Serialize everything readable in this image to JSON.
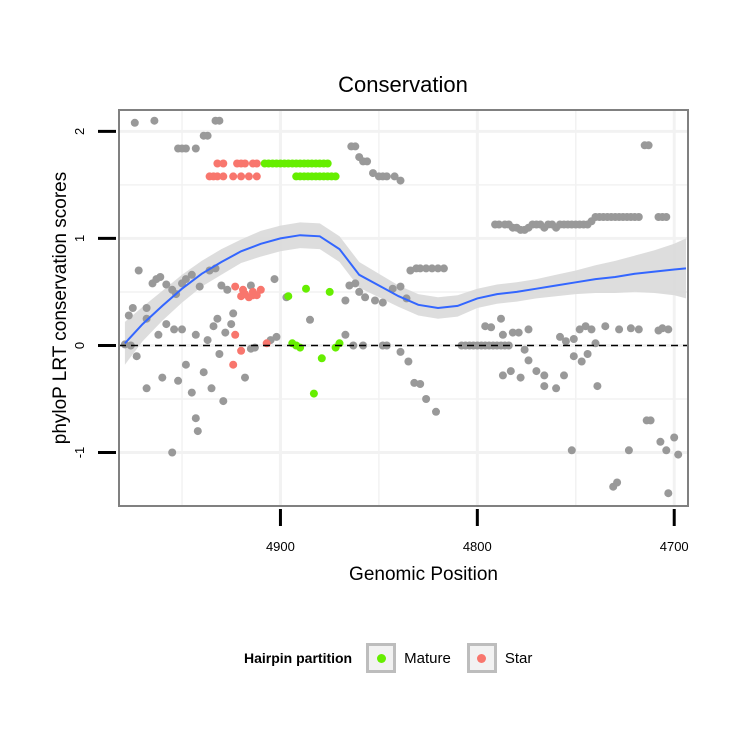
{
  "chart_data": {
    "type": "scatter",
    "title": "Conservation",
    "xlabel": "Genomic Position",
    "ylabel": "phyloP LRT conservation scores",
    "xlim": [
      4982,
      4693
    ],
    "ylim": [
      -1.5,
      2.2
    ],
    "x_reversed": true,
    "xticks": [
      4900,
      4800,
      4700
    ],
    "yticks": [
      -1,
      0,
      1,
      2
    ],
    "reference_line": {
      "y": 0,
      "style": "dashed"
    },
    "legend": {
      "title": "Hairpin partition",
      "position": "bottom",
      "entries": [
        {
          "label": "Mature",
          "color": "#66ee00"
        },
        {
          "label": "Star",
          "color": "#f8766d"
        }
      ]
    },
    "colors": {
      "other": "#999999",
      "mature": "#66ee00",
      "star": "#f8766d",
      "smooth": "#3366ff",
      "ribbon": "#d9d9d9",
      "panel_bg": "#ffffff",
      "grid": "#f2f2f2"
    },
    "smooth_curve": {
      "x": [
        4979,
        4970,
        4960,
        4950,
        4940,
        4930,
        4920,
        4910,
        4900,
        4890,
        4880,
        4870,
        4860,
        4850,
        4840,
        4830,
        4820,
        4810,
        4800,
        4790,
        4780,
        4770,
        4760,
        4750,
        4740,
        4730,
        4720,
        4710,
        4700,
        4694
      ],
      "y": [
        0.02,
        0.2,
        0.37,
        0.53,
        0.67,
        0.78,
        0.88,
        0.95,
        1.0,
        1.03,
        1.02,
        0.9,
        0.66,
        0.56,
        0.46,
        0.38,
        0.35,
        0.37,
        0.44,
        0.48,
        0.5,
        0.53,
        0.56,
        0.59,
        0.62,
        0.64,
        0.67,
        0.69,
        0.71,
        0.72
      ],
      "upper": [
        0.22,
        0.36,
        0.51,
        0.66,
        0.79,
        0.9,
        0.99,
        1.07,
        1.12,
        1.15,
        1.14,
        1.02,
        0.78,
        0.67,
        0.56,
        0.48,
        0.45,
        0.47,
        0.53,
        0.57,
        0.59,
        0.62,
        0.66,
        0.7,
        0.75,
        0.79,
        0.84,
        0.89,
        0.95,
        1.0
      ],
      "lower": [
        -0.18,
        0.04,
        0.23,
        0.4,
        0.55,
        0.66,
        0.77,
        0.83,
        0.88,
        0.91,
        0.9,
        0.78,
        0.54,
        0.45,
        0.36,
        0.28,
        0.25,
        0.27,
        0.35,
        0.39,
        0.41,
        0.44,
        0.46,
        0.48,
        0.49,
        0.49,
        0.5,
        0.49,
        0.47,
        0.44
      ]
    },
    "series": [
      {
        "name": "Mature",
        "points": [
          [
            4908,
            1.7
          ],
          [
            4906,
            1.7
          ],
          [
            4904,
            1.7
          ],
          [
            4902,
            1.7
          ],
          [
            4900,
            1.7
          ],
          [
            4898,
            1.7
          ],
          [
            4896,
            1.7
          ],
          [
            4894,
            1.7
          ],
          [
            4892,
            1.7
          ],
          [
            4890,
            1.7
          ],
          [
            4888,
            1.7
          ],
          [
            4886,
            1.7
          ],
          [
            4884,
            1.7
          ],
          [
            4882,
            1.7
          ],
          [
            4880,
            1.7
          ],
          [
            4878,
            1.7
          ],
          [
            4876,
            1.7
          ],
          [
            4892,
            1.58
          ],
          [
            4890,
            1.58
          ],
          [
            4888,
            1.58
          ],
          [
            4886,
            1.58
          ],
          [
            4884,
            1.58
          ],
          [
            4882,
            1.58
          ],
          [
            4880,
            1.58
          ],
          [
            4878,
            1.58
          ],
          [
            4876,
            1.58
          ],
          [
            4874,
            1.58
          ],
          [
            4872,
            1.58
          ],
          [
            4896,
            0.46
          ],
          [
            4887,
            0.53
          ],
          [
            4875,
            0.5
          ],
          [
            4894,
            0.02
          ],
          [
            4892,
            0.0
          ],
          [
            4890,
            -0.02
          ],
          [
            4879,
            -0.12
          ],
          [
            4872,
            -0.02
          ],
          [
            4870,
            0.02
          ],
          [
            4883,
            -0.45
          ]
        ]
      },
      {
        "name": "Star",
        "points": [
          [
            4932,
            1.7
          ],
          [
            4929,
            1.7
          ],
          [
            4922,
            1.7
          ],
          [
            4920,
            1.7
          ],
          [
            4918,
            1.7
          ],
          [
            4914,
            1.7
          ],
          [
            4912,
            1.7
          ],
          [
            4936,
            1.58
          ],
          [
            4934,
            1.58
          ],
          [
            4932,
            1.58
          ],
          [
            4929,
            1.58
          ],
          [
            4924,
            1.58
          ],
          [
            4920,
            1.58
          ],
          [
            4916,
            1.58
          ],
          [
            4912,
            1.58
          ],
          [
            4923,
            0.55
          ],
          [
            4919,
            0.52
          ],
          [
            4914,
            0.5
          ],
          [
            4912,
            0.47
          ],
          [
            4916,
            0.45
          ],
          [
            4910,
            0.52
          ],
          [
            4920,
            0.46
          ],
          [
            4918,
            0.48
          ],
          [
            4914,
            0.47
          ],
          [
            4923,
            0.1
          ],
          [
            4920,
            -0.05
          ],
          [
            4924,
            -0.18
          ],
          [
            4907,
            0.02
          ]
        ]
      },
      {
        "name": "Other",
        "points": [
          [
            4974,
            2.08
          ],
          [
            4964,
            2.1
          ],
          [
            4952,
            1.84
          ],
          [
            4950,
            1.84
          ],
          [
            4948,
            1.84
          ],
          [
            4943,
            1.84
          ],
          [
            4939,
            1.96
          ],
          [
            4937,
            1.96
          ],
          [
            4933,
            2.1
          ],
          [
            4931,
            2.1
          ],
          [
            4864,
            1.86
          ],
          [
            4862,
            1.86
          ],
          [
            4860,
            1.76
          ],
          [
            4858,
            1.72
          ],
          [
            4856,
            1.72
          ],
          [
            4853,
            1.61
          ],
          [
            4850,
            1.58
          ],
          [
            4848,
            1.58
          ],
          [
            4846,
            1.58
          ],
          [
            4842,
            1.58
          ],
          [
            4839,
            1.54
          ],
          [
            4791,
            1.13
          ],
          [
            4789,
            1.13
          ],
          [
            4786,
            1.13
          ],
          [
            4784,
            1.13
          ],
          [
            4782,
            1.1
          ],
          [
            4780,
            1.1
          ],
          [
            4778,
            1.08
          ],
          [
            4776,
            1.08
          ],
          [
            4774,
            1.1
          ],
          [
            4772,
            1.13
          ],
          [
            4770,
            1.13
          ],
          [
            4768,
            1.13
          ],
          [
            4766,
            1.1
          ],
          [
            4764,
            1.13
          ],
          [
            4762,
            1.13
          ],
          [
            4760,
            1.1
          ],
          [
            4758,
            1.13
          ],
          [
            4756,
            1.13
          ],
          [
            4754,
            1.13
          ],
          [
            4752,
            1.13
          ],
          [
            4750,
            1.13
          ],
          [
            4748,
            1.13
          ],
          [
            4746,
            1.13
          ],
          [
            4744,
            1.13
          ],
          [
            4742,
            1.16
          ],
          [
            4740,
            1.2
          ],
          [
            4738,
            1.2
          ],
          [
            4736,
            1.2
          ],
          [
            4734,
            1.2
          ],
          [
            4732,
            1.2
          ],
          [
            4730,
            1.2
          ],
          [
            4728,
            1.2
          ],
          [
            4726,
            1.2
          ],
          [
            4724,
            1.2
          ],
          [
            4722,
            1.2
          ],
          [
            4720,
            1.2
          ],
          [
            4718,
            1.2
          ],
          [
            4715,
            1.87
          ],
          [
            4713,
            1.87
          ],
          [
            4708,
            1.2
          ],
          [
            4706,
            1.2
          ],
          [
            4704,
            1.2
          ],
          [
            4977,
            0.28
          ],
          [
            4975,
            0.35
          ],
          [
            4972,
            0.7
          ],
          [
            4968,
            0.35
          ],
          [
            4965,
            0.58
          ],
          [
            4963,
            0.62
          ],
          [
            4961,
            0.64
          ],
          [
            4958,
            0.57
          ],
          [
            4955,
            0.52
          ],
          [
            4953,
            0.48
          ],
          [
            4950,
            0.58
          ],
          [
            4948,
            0.62
          ],
          [
            4945,
            0.66
          ],
          [
            4941,
            0.55
          ],
          [
            4936,
            0.7
          ],
          [
            4933,
            0.72
          ],
          [
            4930,
            0.56
          ],
          [
            4927,
            0.52
          ],
          [
            4924,
            0.3
          ],
          [
            4915,
            0.56
          ],
          [
            4903,
            0.62
          ],
          [
            4897,
            0.45
          ],
          [
            4885,
            0.24
          ],
          [
            4867,
            0.42
          ],
          [
            4865,
            0.56
          ],
          [
            4862,
            0.58
          ],
          [
            4860,
            0.5
          ],
          [
            4857,
            0.45
          ],
          [
            4852,
            0.42
          ],
          [
            4848,
            0.4
          ],
          [
            4843,
            0.53
          ],
          [
            4839,
            0.55
          ],
          [
            4836,
            0.44
          ],
          [
            4834,
            0.7
          ],
          [
            4831,
            0.72
          ],
          [
            4829,
            0.72
          ],
          [
            4826,
            0.72
          ],
          [
            4823,
            0.72
          ],
          [
            4820,
            0.72
          ],
          [
            4817,
            0.72
          ],
          [
            4979,
            0.01
          ],
          [
            4976,
            0.0
          ],
          [
            4973,
            -0.1
          ],
          [
            4968,
            0.25
          ],
          [
            4962,
            0.1
          ],
          [
            4958,
            0.2
          ],
          [
            4954,
            0.15
          ],
          [
            4950,
            0.15
          ],
          [
            4943,
            0.1
          ],
          [
            4937,
            0.05
          ],
          [
            4934,
            0.18
          ],
          [
            4932,
            0.25
          ],
          [
            4928,
            0.12
          ],
          [
            4925,
            0.2
          ],
          [
            4915,
            -0.03
          ],
          [
            4905,
            0.05
          ],
          [
            4902,
            0.08
          ],
          [
            4867,
            0.1
          ],
          [
            4863,
            0.0
          ],
          [
            4858,
            0.0
          ],
          [
            4848,
            0.0
          ],
          [
            4846,
            0.0
          ],
          [
            4839,
            -0.06
          ],
          [
            4835,
            -0.15
          ],
          [
            4832,
            -0.35
          ],
          [
            4829,
            -0.36
          ],
          [
            4821,
            -0.62
          ],
          [
            4826,
            -0.5
          ],
          [
            4808,
            0.0
          ],
          [
            4806,
            0.0
          ],
          [
            4804,
            0.0
          ],
          [
            4802,
            0.0
          ],
          [
            4800,
            0.0
          ],
          [
            4798,
            0.0
          ],
          [
            4796,
            0.0
          ],
          [
            4794,
            0.0
          ],
          [
            4792,
            0.0
          ],
          [
            4790,
            0.0
          ],
          [
            4788,
            0.0
          ],
          [
            4786,
            0.0
          ],
          [
            4784,
            0.0
          ],
          [
            4796,
            0.18
          ],
          [
            4793,
            0.17
          ],
          [
            4788,
            0.25
          ],
          [
            4787,
            0.1
          ],
          [
            4782,
            0.12
          ],
          [
            4779,
            0.12
          ],
          [
            4774,
            0.15
          ],
          [
            4758,
            0.08
          ],
          [
            4755,
            0.04
          ],
          [
            4751,
            0.06
          ],
          [
            4748,
            0.15
          ],
          [
            4745,
            0.18
          ],
          [
            4742,
            0.15
          ],
          [
            4740,
            0.02
          ],
          [
            4735,
            0.18
          ],
          [
            4728,
            0.15
          ],
          [
            4722,
            0.16
          ],
          [
            4718,
            0.15
          ],
          [
            4708,
            0.14
          ],
          [
            4706,
            0.16
          ],
          [
            4703,
            0.15
          ],
          [
            4776,
            -0.04
          ],
          [
            4774,
            -0.14
          ],
          [
            4770,
            -0.24
          ],
          [
            4766,
            -0.38
          ],
          [
            4778,
            -0.3
          ],
          [
            4787,
            -0.28
          ],
          [
            4766,
            -0.28
          ],
          [
            4760,
            -0.4
          ],
          [
            4756,
            -0.28
          ],
          [
            4747,
            -0.15
          ],
          [
            4744,
            -0.08
          ],
          [
            4739,
            -0.38
          ],
          [
            4731,
            -1.32
          ],
          [
            4729,
            -1.28
          ],
          [
            4723,
            -0.98
          ],
          [
            4714,
            -0.7
          ],
          [
            4712,
            -0.7
          ],
          [
            4707,
            -0.9
          ],
          [
            4704,
            -0.98
          ],
          [
            4700,
            -0.86
          ],
          [
            4698,
            -1.02
          ],
          [
            4968,
            -0.4
          ],
          [
            4960,
            -0.3
          ],
          [
            4955,
            -1.0
          ],
          [
            4952,
            -0.33
          ],
          [
            4948,
            -0.18
          ],
          [
            4945,
            -0.44
          ],
          [
            4943,
            -0.68
          ],
          [
            4942,
            -0.8
          ],
          [
            4939,
            -0.25
          ],
          [
            4935,
            -0.4
          ],
          [
            4931,
            -0.08
          ],
          [
            4929,
            -0.52
          ],
          [
            4918,
            -0.3
          ],
          [
            4913,
            -0.02
          ],
          [
            4752,
            -0.98
          ],
          [
            4703,
            -1.38
          ],
          [
            4783,
            -0.24
          ],
          [
            4751,
            -0.1
          ]
        ]
      }
    ]
  }
}
